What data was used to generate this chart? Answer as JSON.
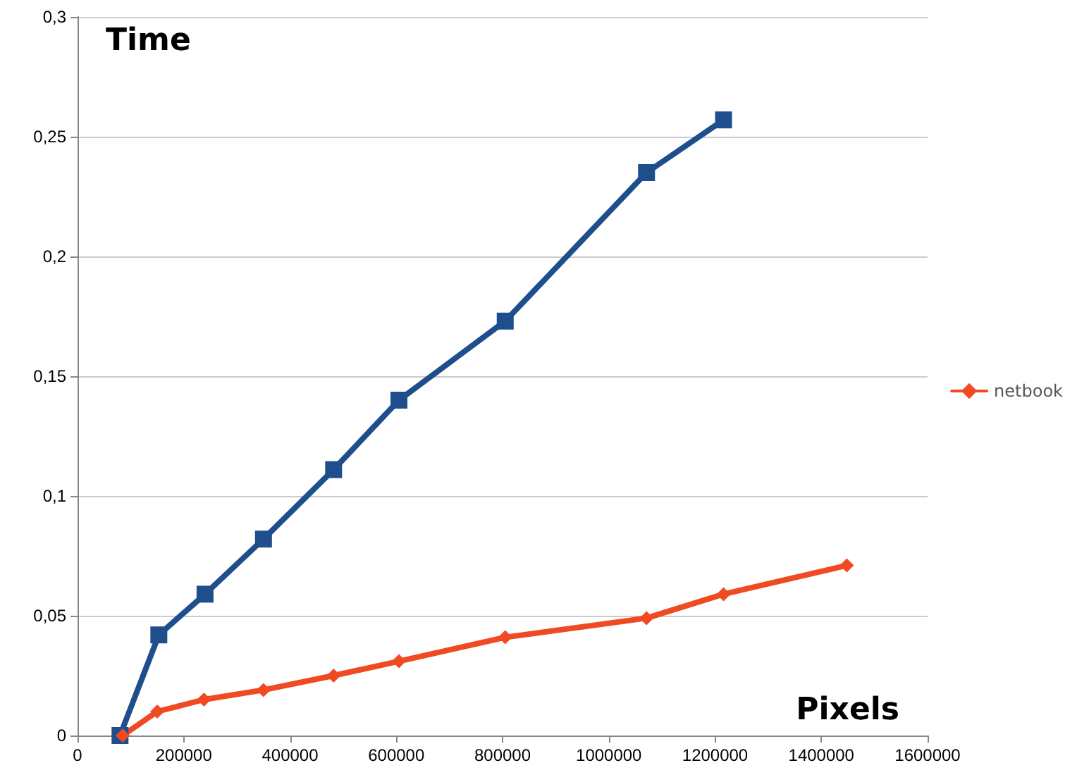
{
  "chart_data": {
    "type": "line",
    "xlabel": "Pixels",
    "ylabel": "Time",
    "xlim": [
      0,
      1600000
    ],
    "xticks": [
      0,
      200000,
      400000,
      600000,
      800000,
      1000000,
      1200000,
      1400000,
      1600000
    ],
    "ylim": [
      0,
      0.3
    ],
    "yticks": [
      0,
      {
        "value": 0.05,
        "label": "0,05"
      },
      {
        "value": 0.1,
        "label": "0,1"
      },
      {
        "value": 0.15,
        "label": "0,15"
      },
      {
        "value": 0.2,
        "label": "0,2"
      },
      {
        "value": 0.25,
        "label": "0,25"
      },
      {
        "value": 0.3,
        "label": "0,3"
      }
    ],
    "grid": "y",
    "legend": "right",
    "line_style": "solid",
    "series": [
      {
        "color": "#1f4e8c",
        "marker": "square",
        "x": [
          80000,
          153000,
          240000,
          350000,
          482000,
          605000,
          805000,
          1071000,
          1216000
        ],
        "values": [
          0,
          0.042,
          0.059,
          0.082,
          0.111,
          0.14,
          0.173,
          0.235,
          0.257
        ]
      },
      {
        "name": "netbook",
        "color": "#f04a23",
        "marker": "diamond",
        "x": [
          85000,
          150000,
          238000,
          350000,
          482000,
          605000,
          805000,
          1071000,
          1216000,
          1448000
        ],
        "values": [
          0,
          0.01,
          0.015,
          0.019,
          0.025,
          0.031,
          0.041,
          0.049,
          0.059,
          0.071
        ]
      }
    ]
  }
}
